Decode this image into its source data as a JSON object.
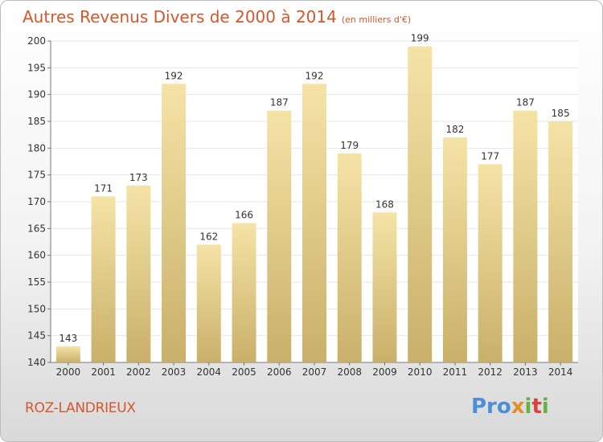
{
  "header": {
    "title": "Autres Revenus Divers de 2000 à 2014",
    "subtitle": "(en milliers d'€)"
  },
  "footer": {
    "place": "ROZ-LANDRIEUX",
    "logo_parts": [
      "Pro",
      "x",
      "i",
      "t",
      "i"
    ]
  },
  "colors": {
    "title": "#d4572b",
    "bar_light": "#f5e3a6",
    "bar_dark": "#c9b06a",
    "grid": "#e6e6e6"
  },
  "chart_data": {
    "type": "bar",
    "title": "Autres Revenus Divers de 2000 à 2014",
    "subtitle": "(en milliers d'€)",
    "categories": [
      "2000",
      "2001",
      "2002",
      "2003",
      "2004",
      "2005",
      "2006",
      "2007",
      "2008",
      "2009",
      "2010",
      "2011",
      "2012",
      "2013",
      "2014"
    ],
    "values": [
      143,
      171,
      173,
      192,
      162,
      166,
      187,
      192,
      179,
      168,
      199,
      182,
      177,
      187,
      185
    ],
    "ylim": [
      140,
      200
    ],
    "yticks": [
      140,
      145,
      150,
      155,
      160,
      165,
      170,
      175,
      180,
      185,
      190,
      195,
      200
    ],
    "grid": true,
    "data_labels": true,
    "legend": "none"
  }
}
